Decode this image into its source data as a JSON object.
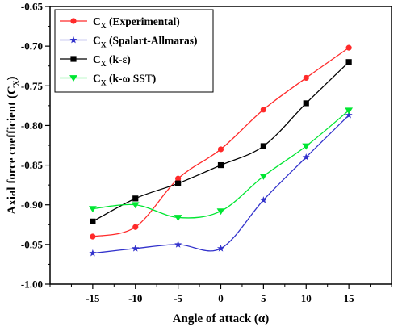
{
  "chart_data": {
    "type": "line",
    "xlabel_main": "Angle of attack (",
    "xlabel_symbol": "α",
    "xlabel_close": ")",
    "ylabel_main": "Axial force coefficient (C",
    "ylabel_sub": "X",
    "ylabel_close": ")",
    "xlim": [
      -20,
      20
    ],
    "ylim": [
      -1.0,
      -0.65
    ],
    "x_ticks": [
      "-15",
      "-10",
      "-5",
      "0",
      "5",
      "10",
      "15"
    ],
    "y_ticks": [
      "-0.65",
      "-0.70",
      "-0.75",
      "-0.80",
      "-0.85",
      "-0.90",
      "-0.95",
      "-1.00"
    ],
    "legend_position": "top-left",
    "x": [
      -15,
      -10,
      -5,
      0,
      5,
      10,
      15
    ],
    "series": [
      {
        "name": "(Experimental)",
        "prefix": "C",
        "sub": "X",
        "color": "#ff2a2a",
        "marker": "circle",
        "values": [
          -0.94,
          -0.928,
          -0.867,
          -0.83,
          -0.78,
          -0.74,
          -0.702
        ]
      },
      {
        "name": "(Spalart-Allmaras)",
        "prefix": "C",
        "sub": "X",
        "color": "#3333cc",
        "marker": "star",
        "values": [
          -0.961,
          -0.955,
          -0.95,
          -0.955,
          -0.894,
          -0.84,
          -0.787
        ]
      },
      {
        "name": "(k-ε)",
        "prefix": "C",
        "sub": "X",
        "color": "#000000",
        "marker": "square",
        "values": [
          -0.921,
          -0.892,
          -0.873,
          -0.85,
          -0.826,
          -0.772,
          -0.72
        ]
      },
      {
        "name": "(k-ω SST)",
        "prefix": "C",
        "sub": "X",
        "color": "#00e632",
        "marker": "triangle-down",
        "values": [
          -0.905,
          -0.9,
          -0.916,
          -0.908,
          -0.864,
          -0.826,
          -0.781
        ]
      }
    ]
  }
}
